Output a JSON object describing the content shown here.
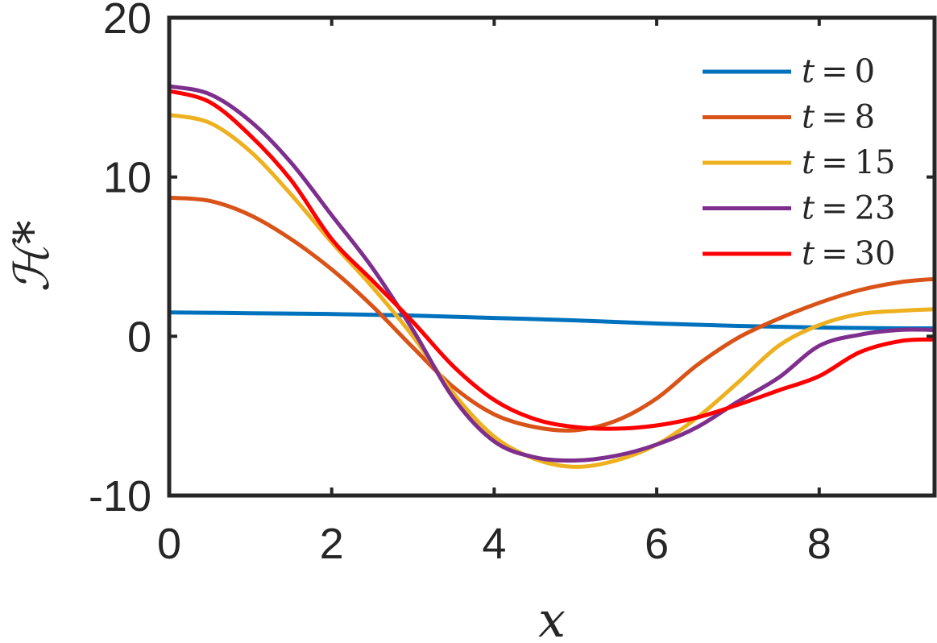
{
  "chart_data": {
    "type": "line",
    "xlabel": "x",
    "ylabel": "ℋ*",
    "xlim": [
      0,
      9.42
    ],
    "ylim": [
      -10,
      20
    ],
    "xticks": [
      0,
      2,
      4,
      6,
      8
    ],
    "xtick_labels": [
      "0",
      "2",
      "4",
      "6",
      "8"
    ],
    "yticks": [
      -10,
      0,
      10,
      20
    ],
    "ytick_labels": [
      "-10",
      "0",
      "10",
      "20"
    ],
    "grid": false,
    "legend_position": "top-right",
    "series": [
      {
        "name": "t = 0",
        "color": "#0072BD",
        "x": [
          0,
          1,
          2,
          3,
          4,
          5,
          6,
          7,
          8,
          9,
          9.42
        ],
        "y": [
          1.5,
          1.45,
          1.4,
          1.3,
          1.15,
          1.0,
          0.8,
          0.65,
          0.55,
          0.5,
          0.5
        ]
      },
      {
        "name": "t = 8",
        "color": "#D95319",
        "x": [
          0,
          0.5,
          1,
          1.5,
          2,
          2.5,
          3,
          3.5,
          4,
          4.5,
          5,
          5.5,
          6,
          6.5,
          7,
          7.5,
          8,
          8.5,
          9,
          9.42
        ],
        "y": [
          8.7,
          8.5,
          7.6,
          6.1,
          4.2,
          1.9,
          -0.7,
          -3.2,
          -4.9,
          -5.7,
          -5.9,
          -5.3,
          -3.9,
          -1.8,
          -0.1,
          1.1,
          2.1,
          2.9,
          3.4,
          3.6
        ]
      },
      {
        "name": "t = 15",
        "color": "#EDB120",
        "x": [
          0,
          0.5,
          1,
          1.5,
          2,
          2.5,
          3,
          3.5,
          4,
          4.5,
          5,
          5.5,
          6,
          6.5,
          7,
          7.5,
          8,
          8.5,
          9,
          9.42
        ],
        "y": [
          13.9,
          13.4,
          11.6,
          8.9,
          5.9,
          3.1,
          0.0,
          -3.6,
          -6.3,
          -7.7,
          -8.2,
          -7.8,
          -6.8,
          -5.1,
          -2.9,
          -0.6,
          0.7,
          1.4,
          1.6,
          1.7
        ]
      },
      {
        "name": "t = 23",
        "color": "#7E2F8E",
        "x": [
          0,
          0.5,
          1,
          1.5,
          2,
          2.5,
          3,
          3.5,
          4,
          4.5,
          5,
          5.5,
          6,
          6.5,
          7,
          7.5,
          8,
          8.5,
          9,
          9.42
        ],
        "y": [
          15.7,
          15.2,
          13.5,
          10.9,
          7.6,
          4.3,
          0.4,
          -3.9,
          -6.6,
          -7.6,
          -7.8,
          -7.5,
          -6.8,
          -5.7,
          -4.1,
          -2.6,
          -0.6,
          0.1,
          0.4,
          0.4
        ]
      },
      {
        "name": "t = 30",
        "color": "#FF0000",
        "x": [
          0,
          0.5,
          1,
          1.5,
          2,
          2.5,
          3,
          3.5,
          4,
          4.5,
          5,
          5.5,
          6,
          6.5,
          7,
          7.5,
          8,
          8.5,
          9,
          9.42
        ],
        "y": [
          15.4,
          14.7,
          12.6,
          9.8,
          6.1,
          3.5,
          0.9,
          -1.9,
          -4.0,
          -5.2,
          -5.7,
          -5.8,
          -5.6,
          -5.1,
          -4.3,
          -3.4,
          -2.5,
          -1.0,
          -0.3,
          -0.2
        ]
      }
    ]
  }
}
